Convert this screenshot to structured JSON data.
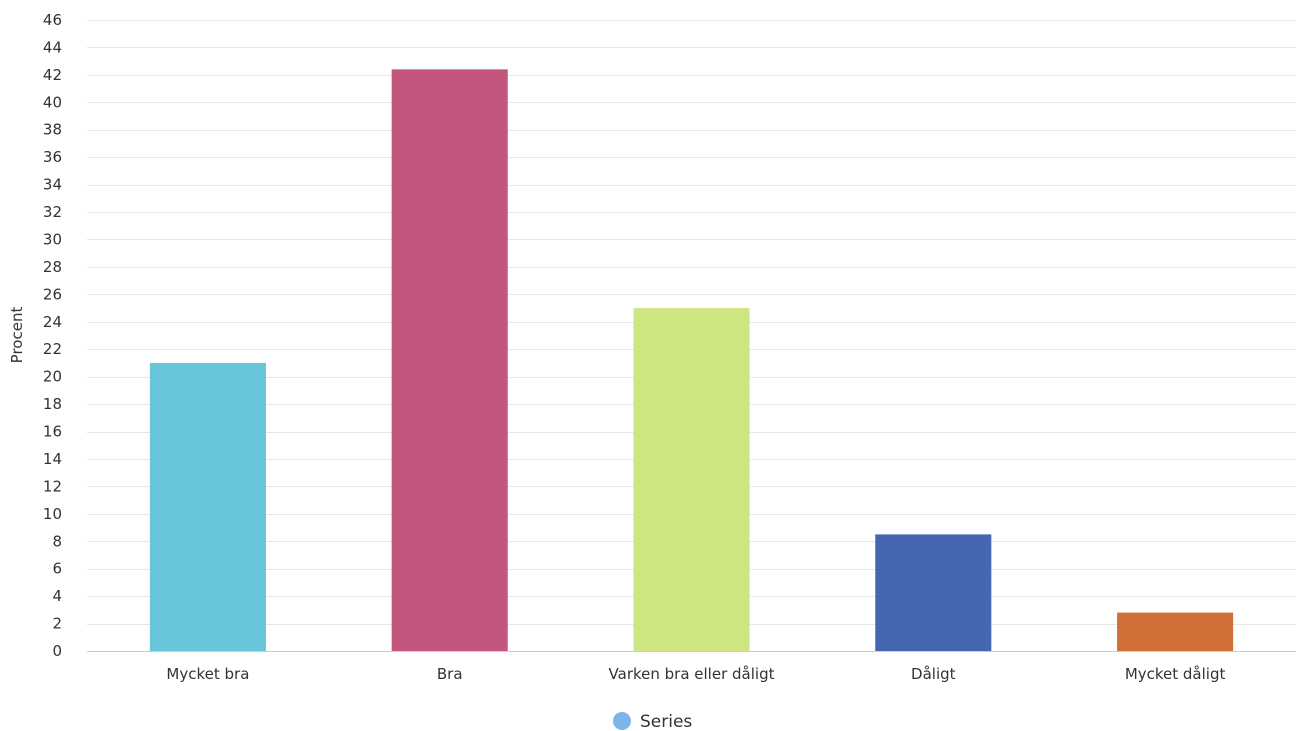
{
  "chart_data": {
    "type": "bar",
    "categories": [
      "Mycket bra",
      "Bra",
      "Varken bra eller dåligt",
      "Dåligt",
      "Mycket dåligt"
    ],
    "values": [
      21.0,
      42.4,
      25.0,
      8.5,
      2.8
    ],
    "colors": [
      "#69c5d9",
      "#c2567e",
      "#cee682",
      "#4567b2",
      "#d07038"
    ],
    "ylabel": "Procent",
    "xlabel": "",
    "ylim": [
      0,
      46
    ],
    "ytick_step": 2,
    "grid": true,
    "legend": {
      "position": "bottom-center",
      "entries": [
        {
          "name": "Series",
          "color": "#7cb5ec"
        }
      ]
    }
  }
}
